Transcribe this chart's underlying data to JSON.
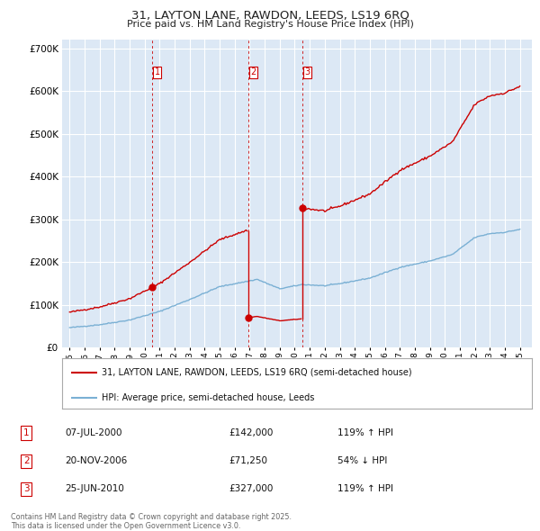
{
  "title": "31, LAYTON LANE, RAWDON, LEEDS, LS19 6RQ",
  "subtitle": "Price paid vs. HM Land Registry's House Price Index (HPI)",
  "transactions": [
    {
      "label": "1",
      "date_str": "07-JUL-2000",
      "date_num": 2000.52,
      "price": 142000,
      "pct": "119% ↑ HPI"
    },
    {
      "label": "2",
      "date_str": "20-NOV-2006",
      "date_num": 2006.89,
      "price": 71250,
      "pct": "54% ↓ HPI"
    },
    {
      "label": "3",
      "date_str": "25-JUN-2010",
      "date_num": 2010.48,
      "price": 327000,
      "pct": "119% ↑ HPI"
    }
  ],
  "legend_property": "31, LAYTON LANE, RAWDON, LEEDS, LS19 6RQ (semi-detached house)",
  "legend_hpi": "HPI: Average price, semi-detached house, Leeds",
  "footer": "Contains HM Land Registry data © Crown copyright and database right 2025.\nThis data is licensed under the Open Government Licence v3.0.",
  "ylim": [
    0,
    720000
  ],
  "yticks": [
    0,
    100000,
    200000,
    300000,
    400000,
    500000,
    600000,
    700000
  ],
  "ytick_labels": [
    "£0",
    "£100K",
    "£200K",
    "£300K",
    "£400K",
    "£500K",
    "£600K",
    "£700K"
  ],
  "xlim_start": 1994.5,
  "xlim_end": 2025.8,
  "bg_color": "#dce8f5",
  "red_color": "#cc0000",
  "blue_color": "#7ab0d4",
  "grid_color": "#ffffff",
  "dashed_color": "#cc0000",
  "hpi_anchors_t": [
    1995.0,
    1997.0,
    1999.0,
    2001.0,
    2003.0,
    2005.0,
    2007.5,
    2009.0,
    2010.5,
    2012.0,
    2013.0,
    2015.0,
    2017.0,
    2019.0,
    2020.5,
    2022.0,
    2023.0,
    2024.0,
    2025.0
  ],
  "hpi_anchors_v": [
    47000,
    54000,
    65000,
    85000,
    113000,
    143000,
    160000,
    138000,
    148000,
    145000,
    150000,
    163000,
    188000,
    203000,
    218000,
    258000,
    267000,
    270000,
    277000
  ]
}
